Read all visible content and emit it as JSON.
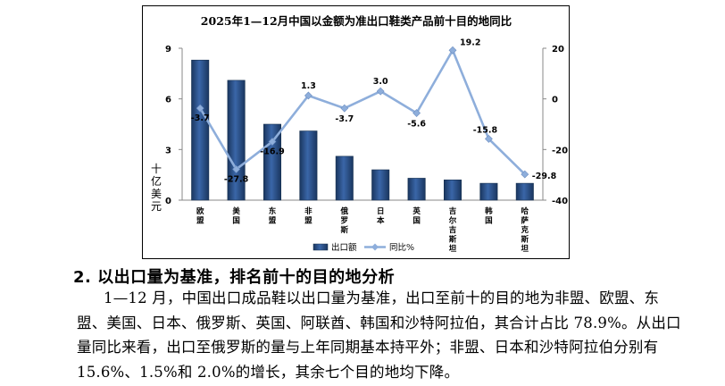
{
  "chart_data": {
    "type": "bar+line",
    "title": "2025年1—12月中国以金额为准出口鞋类产品前十目的地同比",
    "categories": [
      "欧盟",
      "美国",
      "东盟",
      "非盟",
      "俄罗斯",
      "日本",
      "英国",
      "吉尔吉斯斯坦",
      "韩国",
      "哈萨克斯坦"
    ],
    "category_labels": [
      [
        "欧",
        "盟"
      ],
      [
        "美",
        "国"
      ],
      [
        "东",
        "盟"
      ],
      [
        "非",
        "盟"
      ],
      [
        "俄",
        "罗",
        "斯"
      ],
      [
        "日",
        "本"
      ],
      [
        "英",
        "国"
      ],
      [
        "吉",
        "尔",
        "吉",
        "斯",
        "坦"
      ],
      [
        "韩",
        "国"
      ],
      [
        "哈",
        "萨",
        "克",
        "斯",
        "坦"
      ]
    ],
    "series": [
      {
        "name": "出口额",
        "kind": "bar",
        "axis": "left",
        "values": [
          8.3,
          7.1,
          4.5,
          4.1,
          2.6,
          1.8,
          1.3,
          1.2,
          1.0,
          1.0
        ]
      },
      {
        "name": "同比%",
        "kind": "line",
        "axis": "right",
        "values": [
          -3.7,
          -27.8,
          -16.9,
          1.3,
          -3.7,
          3.0,
          -5.6,
          19.2,
          -15.8,
          -29.8
        ],
        "labels": [
          "-3.7",
          "-27.8",
          "-16.9",
          "1.3",
          "-3.7",
          "3.0",
          "-5.6",
          "19.2",
          "-15.8",
          "-29.8"
        ]
      }
    ],
    "ylabel": "十亿美元",
    "ylim": [
      0,
      9
    ],
    "yticks": [
      "0",
      "3",
      "6",
      "9"
    ],
    "y2lim": [
      -40,
      20
    ],
    "y2ticks": [
      "-40",
      "-20",
      "0",
      "20"
    ],
    "legend_position": "bottom",
    "grid": false,
    "colors": {
      "bar": "#1f3d6b",
      "line": "#8eaedb"
    }
  },
  "section": {
    "heading": "2. 以出口量为基准，排名前十的目的地分析",
    "paragraph": "1—12 月，中国出口成品鞋以出口量为基准，出口至前十的目的地为非盟、欧盟、东盟、美国、日本、俄罗斯、英国、阿联酋、韩国和沙特阿拉伯，其合计占比 78.9%。从出口量同比来看，出口至俄罗斯的量与上年同期基本持平外；非盟、日本和沙特阿拉伯分别有 15.6%、1.5%和 2.0%的增长，其余七个目的地均下降。"
  }
}
